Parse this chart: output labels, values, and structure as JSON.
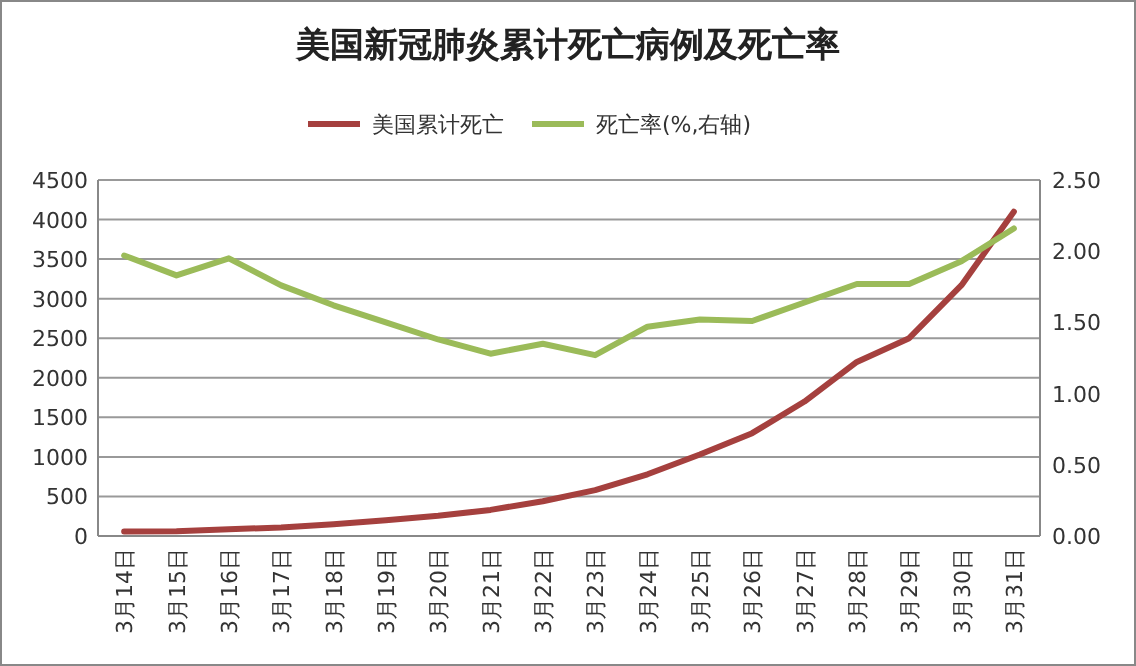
{
  "chart_data": {
    "type": "line",
    "title": "美国新冠肺炎累计死亡病例及死亡率",
    "categories": [
      "3月14日",
      "3月15日",
      "3月16日",
      "3月17日",
      "3月18日",
      "3月19日",
      "3月20日",
      "3月21日",
      "3月22日",
      "3月23日",
      "3月24日",
      "3月25日",
      "3月26日",
      "3月27日",
      "3月28日",
      "3月29日",
      "3月30日",
      "3月31日"
    ],
    "series": [
      {
        "name": "美国累计死亡",
        "color": "#a5403e",
        "values": [
          57,
          60,
          85,
          108,
          150,
          200,
          255,
          330,
          440,
          580,
          780,
          1030,
          1300,
          1700,
          2200,
          2500,
          3170,
          4100
        ]
      },
      {
        "name": "死亡率(%,右轴)",
        "color": "#9bbb59",
        "axis": "y2",
        "values": [
          1.97,
          1.83,
          1.95,
          1.76,
          1.62,
          1.5,
          1.38,
          1.28,
          1.35,
          1.27,
          1.47,
          1.52,
          1.51,
          1.64,
          1.77,
          1.77,
          1.93,
          2.16
        ]
      }
    ],
    "ylim": [
      0,
      4500
    ],
    "yticks": [
      0,
      500,
      1000,
      1500,
      2000,
      2500,
      3000,
      3500,
      4000,
      4500
    ],
    "y2lim": [
      0,
      2.5
    ],
    "y2ticks": [
      {
        "value": 0,
        "label": "0.00"
      },
      {
        "value": 0.5,
        "label": "0.50"
      },
      {
        "value": 1,
        "label": "1.00"
      },
      {
        "value": 1.5,
        "label": "1.50"
      },
      {
        "value": 2,
        "label": "2.00"
      },
      {
        "value": 2.5,
        "label": "2.50"
      }
    ],
    "grid": "y",
    "legend": "top",
    "line_style": "solid",
    "marker": "none"
  }
}
